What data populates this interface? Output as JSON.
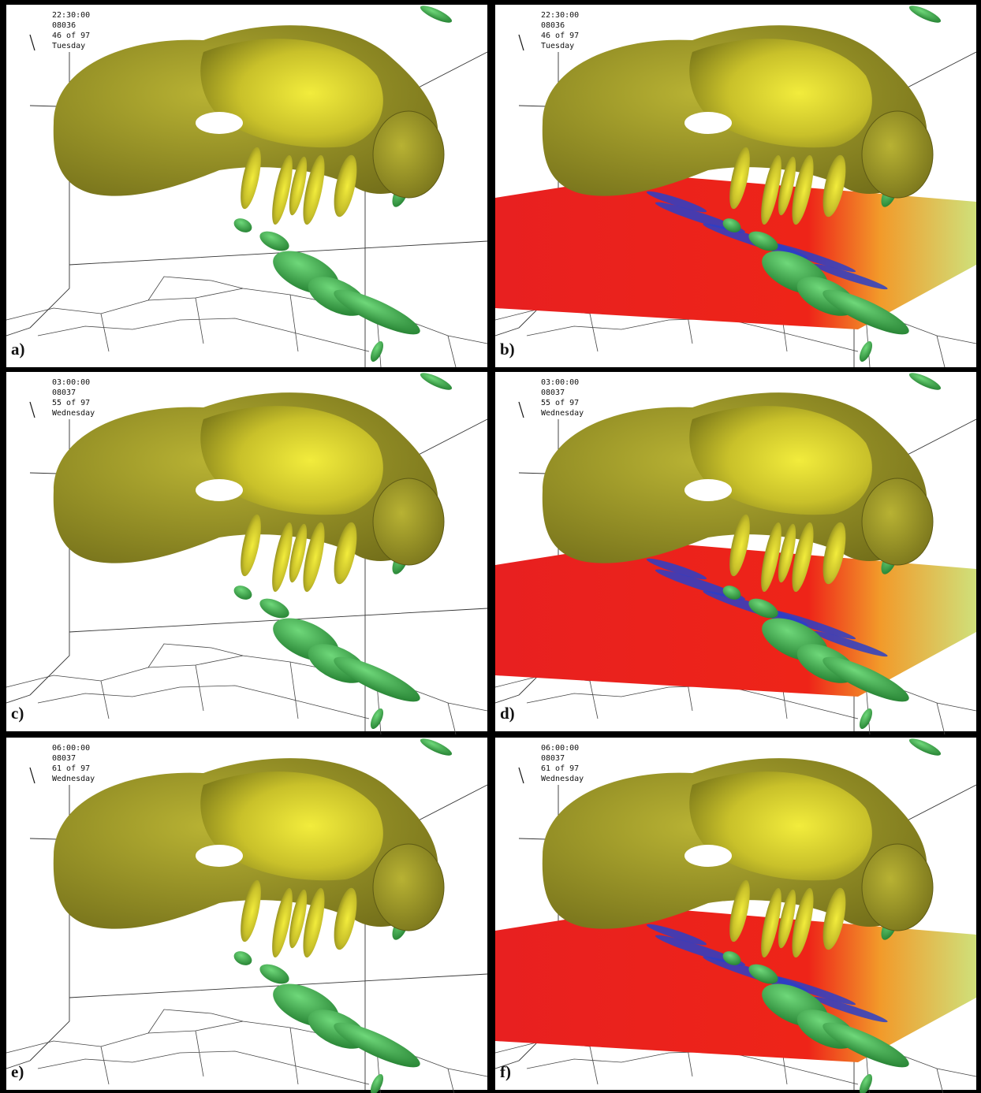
{
  "panels": [
    {
      "time": "22:30:00",
      "code": "08036",
      "frame": "46 of 97",
      "day": "Tuesday",
      "label": "a)"
    },
    {
      "time": "22:30:00",
      "code": "08036",
      "frame": "46 of 97",
      "day": "Tuesday",
      "label": "b)"
    },
    {
      "time": "03:00:00",
      "code": "08037",
      "frame": "55 of 97",
      "day": "Wednesday",
      "label": "c)"
    },
    {
      "time": "03:00:00",
      "code": "08037",
      "frame": "55 of 97",
      "day": "Wednesday",
      "label": "d)"
    },
    {
      "time": "06:00:00",
      "code": "08037",
      "frame": "61 of 97",
      "day": "Wednesday",
      "label": "e)"
    },
    {
      "time": "06:00:00",
      "code": "08037",
      "frame": "61 of 97",
      "day": "Wednesday",
      "label": "f)"
    }
  ]
}
